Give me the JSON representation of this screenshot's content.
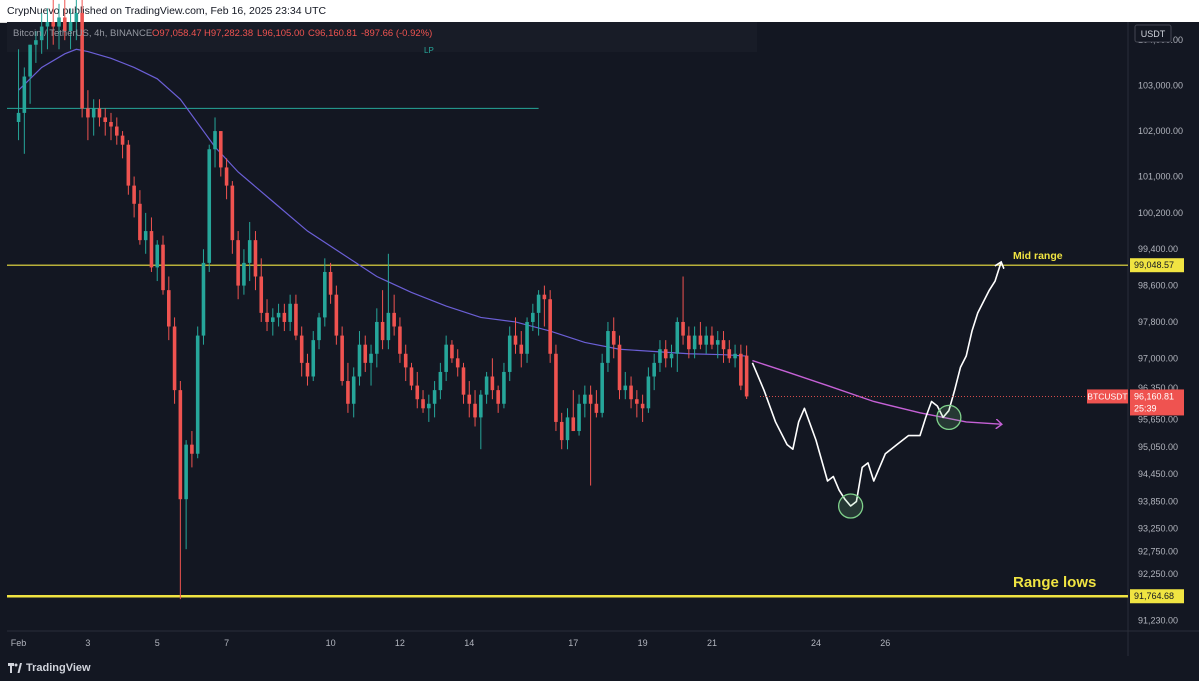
{
  "header": {
    "published_text": "CrypNuevo published on TradingView.com, Feb 16, 2025 23:34 UTC"
  },
  "footer": {
    "brand": "TradingView"
  },
  "colors": {
    "background": "#131722",
    "up": "#26a69a",
    "down": "#ef5350",
    "ma": "#6b5fd6",
    "projection_ma": "#c561d6",
    "level_line": "#f0e442",
    "lp_line": "#26a69a",
    "annotation": "#ffffff",
    "circle": "#7fd18b"
  },
  "chart_data": {
    "type": "candlestick",
    "symbol_line": "Bitcoin / TetherUS, 4h, BINANCE",
    "ohlc": {
      "o": "O97,058.47",
      "h": "H97,282.38",
      "l": "L96,105.00",
      "c": "C96,160.81",
      "chg": "-897.66 (-0.92%)"
    },
    "indicator_label": "LP",
    "currency": "USDT",
    "x_axis_labels": [
      {
        "label": "Feb",
        "x": 0
      },
      {
        "label": "3",
        "x": 12
      },
      {
        "label": "5",
        "x": 24
      },
      {
        "label": "7",
        "x": 36
      },
      {
        "label": "10",
        "x": 54
      },
      {
        "label": "12",
        "x": 66
      },
      {
        "label": "14",
        "x": 78
      },
      {
        "label": "17",
        "x": 96
      },
      {
        "label": "19",
        "x": 108
      },
      {
        "label": "21",
        "x": 120
      },
      {
        "label": "24",
        "x": 138
      },
      {
        "label": "26",
        "x": 150
      }
    ],
    "y_axis_labels": [
      "104,000.00",
      "103,000.00",
      "102,000.00",
      "101,000.00",
      "100,200.00",
      "99,400.00",
      "98,600.00",
      "97,800.00",
      "97,000.00",
      "96,350.00",
      "95,650.00",
      "95,050.00",
      "94,450.00",
      "93,850.00",
      "93,250.00",
      "92,750.00",
      "92,250.00",
      "91,230.00"
    ],
    "price_badges": [
      {
        "label": "",
        "value": "99,048.57",
        "type": "level"
      },
      {
        "label": "BTCUSDT",
        "value": "96,160.81",
        "timer": "25:39",
        "type": "current"
      },
      {
        "label": "",
        "value": "91,764.68",
        "type": "level"
      }
    ],
    "levels": [
      {
        "name": "Mid range",
        "price": 99048.57
      },
      {
        "name": "Range lows",
        "price": 91764.68
      }
    ],
    "lp_level": {
      "price": 102500,
      "x_end": 90
    },
    "candles": [
      {
        "o": 102200,
        "h": 103800,
        "l": 101800,
        "c": 102400
      },
      {
        "o": 102400,
        "h": 103400,
        "l": 101500,
        "c": 103200
      },
      {
        "o": 103200,
        "h": 103900,
        "l": 102600,
        "c": 103900
      },
      {
        "o": 103900,
        "h": 104200,
        "l": 103500,
        "c": 104000
      },
      {
        "o": 104000,
        "h": 104600,
        "l": 103700,
        "c": 104300
      },
      {
        "o": 104300,
        "h": 104700,
        "l": 103800,
        "c": 104400
      },
      {
        "o": 104400,
        "h": 104900,
        "l": 103900,
        "c": 104300
      },
      {
        "o": 104300,
        "h": 104800,
        "l": 103800,
        "c": 104500
      },
      {
        "o": 104500,
        "h": 104900,
        "l": 104000,
        "c": 104200
      },
      {
        "o": 104200,
        "h": 104700,
        "l": 103800,
        "c": 104400
      },
      {
        "o": 104400,
        "h": 104900,
        "l": 104000,
        "c": 104600
      },
      {
        "o": 104600,
        "h": 104900,
        "l": 102300,
        "c": 102500
      },
      {
        "o": 102500,
        "h": 102900,
        "l": 101800,
        "c": 102300
      },
      {
        "o": 102300,
        "h": 102700,
        "l": 101900,
        "c": 102500
      },
      {
        "o": 102500,
        "h": 102700,
        "l": 102100,
        "c": 102300
      },
      {
        "o": 102300,
        "h": 102500,
        "l": 101900,
        "c": 102200
      },
      {
        "o": 102200,
        "h": 102400,
        "l": 101800,
        "c": 102100
      },
      {
        "o": 102100,
        "h": 102300,
        "l": 101700,
        "c": 101900
      },
      {
        "o": 101900,
        "h": 102000,
        "l": 101400,
        "c": 101700
      },
      {
        "o": 101700,
        "h": 101800,
        "l": 100600,
        "c": 100800
      },
      {
        "o": 100800,
        "h": 101000,
        "l": 100100,
        "c": 100400
      },
      {
        "o": 100400,
        "h": 100700,
        "l": 99500,
        "c": 99600
      },
      {
        "o": 99600,
        "h": 100200,
        "l": 99300,
        "c": 99800
      },
      {
        "o": 99800,
        "h": 100100,
        "l": 98900,
        "c": 99000
      },
      {
        "o": 99000,
        "h": 99600,
        "l": 98700,
        "c": 99500
      },
      {
        "o": 99500,
        "h": 99700,
        "l": 98400,
        "c": 98500
      },
      {
        "o": 98500,
        "h": 98800,
        "l": 97400,
        "c": 97700
      },
      {
        "o": 97700,
        "h": 97900,
        "l": 96000,
        "c": 96300
      },
      {
        "o": 96300,
        "h": 96500,
        "l": 91700,
        "c": 93900
      },
      {
        "o": 93900,
        "h": 95200,
        "l": 92800,
        "c": 95100
      },
      {
        "o": 95100,
        "h": 95400,
        "l": 94600,
        "c": 94900
      },
      {
        "o": 94900,
        "h": 97700,
        "l": 94800,
        "c": 97500
      },
      {
        "o": 97500,
        "h": 99400,
        "l": 97300,
        "c": 99100
      },
      {
        "o": 99100,
        "h": 101700,
        "l": 98900,
        "c": 101600
      },
      {
        "o": 101600,
        "h": 102300,
        "l": 101200,
        "c": 102000
      },
      {
        "o": 102000,
        "h": 102000,
        "l": 101000,
        "c": 101200
      },
      {
        "o": 101200,
        "h": 101400,
        "l": 100500,
        "c": 100800
      },
      {
        "o": 100800,
        "h": 100900,
        "l": 99300,
        "c": 99600
      },
      {
        "o": 99600,
        "h": 99800,
        "l": 98300,
        "c": 98600
      },
      {
        "o": 98600,
        "h": 99400,
        "l": 98400,
        "c": 99100
      },
      {
        "o": 99100,
        "h": 100000,
        "l": 98700,
        "c": 99600
      },
      {
        "o": 99600,
        "h": 99800,
        "l": 98500,
        "c": 98800
      },
      {
        "o": 98800,
        "h": 99200,
        "l": 97800,
        "c": 98000
      },
      {
        "o": 98000,
        "h": 98300,
        "l": 97600,
        "c": 97800
      },
      {
        "o": 97800,
        "h": 98100,
        "l": 97500,
        "c": 97900
      },
      {
        "o": 97900,
        "h": 98200,
        "l": 97700,
        "c": 98000
      },
      {
        "o": 98000,
        "h": 98200,
        "l": 97600,
        "c": 97800
      },
      {
        "o": 97800,
        "h": 98400,
        "l": 97600,
        "c": 98200
      },
      {
        "o": 98200,
        "h": 98400,
        "l": 97400,
        "c": 97500
      },
      {
        "o": 97500,
        "h": 97700,
        "l": 96600,
        "c": 96900
      },
      {
        "o": 96900,
        "h": 97100,
        "l": 96400,
        "c": 96600
      },
      {
        "o": 96600,
        "h": 97600,
        "l": 96500,
        "c": 97400
      },
      {
        "o": 97400,
        "h": 98000,
        "l": 97200,
        "c": 97900
      },
      {
        "o": 97900,
        "h": 99200,
        "l": 97700,
        "c": 98900
      },
      {
        "o": 98900,
        "h": 99100,
        "l": 98200,
        "c": 98400
      },
      {
        "o": 98400,
        "h": 98600,
        "l": 97300,
        "c": 97500
      },
      {
        "o": 97500,
        "h": 97700,
        "l": 96400,
        "c": 96500
      },
      {
        "o": 96500,
        "h": 96900,
        "l": 95800,
        "c": 96000
      },
      {
        "o": 96000,
        "h": 96800,
        "l": 95700,
        "c": 96600
      },
      {
        "o": 96600,
        "h": 97600,
        "l": 96400,
        "c": 97300
      },
      {
        "o": 97300,
        "h": 97500,
        "l": 96700,
        "c": 96900
      },
      {
        "o": 96900,
        "h": 97300,
        "l": 96400,
        "c": 97100
      },
      {
        "o": 97100,
        "h": 98100,
        "l": 96800,
        "c": 97800
      },
      {
        "o": 97800,
        "h": 98500,
        "l": 97200,
        "c": 97400
      },
      {
        "o": 97400,
        "h": 99300,
        "l": 97200,
        "c": 98000
      },
      {
        "o": 98000,
        "h": 98400,
        "l": 97500,
        "c": 97700
      },
      {
        "o": 97700,
        "h": 97900,
        "l": 96900,
        "c": 97100
      },
      {
        "o": 97100,
        "h": 97300,
        "l": 96500,
        "c": 96800
      },
      {
        "o": 96800,
        "h": 96900,
        "l": 96300,
        "c": 96400
      },
      {
        "o": 96400,
        "h": 96700,
        "l": 95900,
        "c": 96100
      },
      {
        "o": 96100,
        "h": 96300,
        "l": 95800,
        "c": 95900
      },
      {
        "o": 95900,
        "h": 96200,
        "l": 95600,
        "c": 96000
      },
      {
        "o": 96000,
        "h": 96500,
        "l": 95700,
        "c": 96300
      },
      {
        "o": 96300,
        "h": 96900,
        "l": 96100,
        "c": 96700
      },
      {
        "o": 96700,
        "h": 97500,
        "l": 96500,
        "c": 97300
      },
      {
        "o": 97300,
        "h": 97400,
        "l": 96900,
        "c": 97000
      },
      {
        "o": 97000,
        "h": 97200,
        "l": 96600,
        "c": 96800
      },
      {
        "o": 96800,
        "h": 96900,
        "l": 96000,
        "c": 96200
      },
      {
        "o": 96200,
        "h": 96500,
        "l": 95700,
        "c": 96000
      },
      {
        "o": 96000,
        "h": 96300,
        "l": 95500,
        "c": 95700
      },
      {
        "o": 95700,
        "h": 96300,
        "l": 95000,
        "c": 96200
      },
      {
        "o": 96200,
        "h": 96700,
        "l": 96000,
        "c": 96600
      },
      {
        "o": 96600,
        "h": 97000,
        "l": 96100,
        "c": 96300
      },
      {
        "o": 96300,
        "h": 96400,
        "l": 95800,
        "c": 96000
      },
      {
        "o": 96000,
        "h": 96900,
        "l": 95900,
        "c": 96700
      },
      {
        "o": 96700,
        "h": 97700,
        "l": 96500,
        "c": 97500
      },
      {
        "o": 97500,
        "h": 97900,
        "l": 97100,
        "c": 97300
      },
      {
        "o": 97300,
        "h": 97600,
        "l": 96800,
        "c": 97100
      },
      {
        "o": 97100,
        "h": 97900,
        "l": 96900,
        "c": 97800
      },
      {
        "o": 97800,
        "h": 98200,
        "l": 97600,
        "c": 98000
      },
      {
        "o": 98000,
        "h": 98500,
        "l": 97500,
        "c": 98400
      },
      {
        "o": 98400,
        "h": 98600,
        "l": 97700,
        "c": 98300
      },
      {
        "o": 98300,
        "h": 98500,
        "l": 96900,
        "c": 97100
      },
      {
        "o": 97100,
        "h": 97300,
        "l": 95400,
        "c": 95600
      },
      {
        "o": 95600,
        "h": 95800,
        "l": 95000,
        "c": 95200
      },
      {
        "o": 95200,
        "h": 95900,
        "l": 95000,
        "c": 95700
      },
      {
        "o": 95700,
        "h": 96300,
        "l": 95400,
        "c": 95400
      },
      {
        "o": 95400,
        "h": 96200,
        "l": 95300,
        "c": 96000
      },
      {
        "o": 96000,
        "h": 96400,
        "l": 95700,
        "c": 96200
      },
      {
        "o": 96200,
        "h": 96400,
        "l": 94200,
        "c": 96000
      },
      {
        "o": 96000,
        "h": 96300,
        "l": 95700,
        "c": 95800
      },
      {
        "o": 95800,
        "h": 97100,
        "l": 95700,
        "c": 96900
      },
      {
        "o": 96900,
        "h": 97800,
        "l": 96700,
        "c": 97600
      },
      {
        "o": 97600,
        "h": 97900,
        "l": 97000,
        "c": 97300
      },
      {
        "o": 97300,
        "h": 97500,
        "l": 96100,
        "c": 96300
      },
      {
        "o": 96300,
        "h": 96700,
        "l": 96100,
        "c": 96400
      },
      {
        "o": 96400,
        "h": 96600,
        "l": 95900,
        "c": 96100
      },
      {
        "o": 96100,
        "h": 96300,
        "l": 95700,
        "c": 96000
      },
      {
        "o": 96000,
        "h": 96200,
        "l": 95600,
        "c": 95900
      },
      {
        "o": 95900,
        "h": 96800,
        "l": 95800,
        "c": 96600
      },
      {
        "o": 96600,
        "h": 97100,
        "l": 96300,
        "c": 96900
      },
      {
        "o": 96900,
        "h": 97400,
        "l": 96700,
        "c": 97200
      },
      {
        "o": 97200,
        "h": 97400,
        "l": 96800,
        "c": 97000
      },
      {
        "o": 97000,
        "h": 97300,
        "l": 96800,
        "c": 97100
      },
      {
        "o": 97100,
        "h": 97900,
        "l": 96700,
        "c": 97800
      },
      {
        "o": 97800,
        "h": 98800,
        "l": 97300,
        "c": 97500
      },
      {
        "o": 97500,
        "h": 97700,
        "l": 97000,
        "c": 97200
      },
      {
        "o": 97200,
        "h": 97700,
        "l": 97000,
        "c": 97500
      },
      {
        "o": 97500,
        "h": 97800,
        "l": 97200,
        "c": 97300
      },
      {
        "o": 97300,
        "h": 97700,
        "l": 97100,
        "c": 97500
      },
      {
        "o": 97500,
        "h": 97700,
        "l": 97200,
        "c": 97300
      },
      {
        "o": 97300,
        "h": 97600,
        "l": 97000,
        "c": 97400
      },
      {
        "o": 97400,
        "h": 97600,
        "l": 96900,
        "c": 97200
      },
      {
        "o": 97200,
        "h": 97400,
        "l": 96900,
        "c": 97000
      },
      {
        "o": 97000,
        "h": 97300,
        "l": 96800,
        "c": 97100
      },
      {
        "o": 97100,
        "h": 97300,
        "l": 96300,
        "c": 96400
      },
      {
        "o": 97058.47,
        "h": 97282.38,
        "l": 96105,
        "c": 96160.81
      }
    ],
    "moving_average": [
      {
        "x": 0,
        "y": 102900
      },
      {
        "x": 4,
        "y": 103400
      },
      {
        "x": 8,
        "y": 103700
      },
      {
        "x": 10,
        "y": 103800
      },
      {
        "x": 12,
        "y": 103750
      },
      {
        "x": 16,
        "y": 103600
      },
      {
        "x": 20,
        "y": 103400
      },
      {
        "x": 24,
        "y": 103150
      },
      {
        "x": 28,
        "y": 102700
      },
      {
        "x": 32,
        "y": 102000
      },
      {
        "x": 34,
        "y": 101650
      },
      {
        "x": 38,
        "y": 101100
      },
      {
        "x": 44,
        "y": 100450
      },
      {
        "x": 50,
        "y": 99800
      },
      {
        "x": 56,
        "y": 99300
      },
      {
        "x": 62,
        "y": 98800
      },
      {
        "x": 68,
        "y": 98450
      },
      {
        "x": 74,
        "y": 98150
      },
      {
        "x": 80,
        "y": 97900
      },
      {
        "x": 86,
        "y": 97800
      },
      {
        "x": 92,
        "y": 97600
      },
      {
        "x": 98,
        "y": 97350
      },
      {
        "x": 104,
        "y": 97200
      },
      {
        "x": 110,
        "y": 97150
      },
      {
        "x": 116,
        "y": 97100
      },
      {
        "x": 122,
        "y": 97080
      },
      {
        "x": 126,
        "y": 97050
      }
    ],
    "projection_ma": [
      {
        "x": 127,
        "y": 96950
      },
      {
        "x": 133,
        "y": 96700
      },
      {
        "x": 140,
        "y": 96400
      },
      {
        "x": 148,
        "y": 96050
      },
      {
        "x": 156,
        "y": 95800
      },
      {
        "x": 164,
        "y": 95600
      },
      {
        "x": 170,
        "y": 95550
      }
    ],
    "projection_path": [
      {
        "x": 127,
        "y": 96900
      },
      {
        "x": 129,
        "y": 96300
      },
      {
        "x": 131,
        "y": 95600
      },
      {
        "x": 133,
        "y": 95100
      },
      {
        "x": 134,
        "y": 95000
      },
      {
        "x": 135,
        "y": 95600
      },
      {
        "x": 136,
        "y": 95900
      },
      {
        "x": 138,
        "y": 95200
      },
      {
        "x": 140,
        "y": 94300
      },
      {
        "x": 141,
        "y": 94400
      },
      {
        "x": 142,
        "y": 94100
      },
      {
        "x": 143,
        "y": 93900
      },
      {
        "x": 144,
        "y": 93750
      },
      {
        "x": 145,
        "y": 93850
      },
      {
        "x": 146,
        "y": 94600
      },
      {
        "x": 147,
        "y": 94700
      },
      {
        "x": 148,
        "y": 94300
      },
      {
        "x": 150,
        "y": 94900
      },
      {
        "x": 152,
        "y": 95100
      },
      {
        "x": 154,
        "y": 95300
      },
      {
        "x": 156,
        "y": 95300
      },
      {
        "x": 157,
        "y": 95700
      },
      {
        "x": 158,
        "y": 96050
      },
      {
        "x": 159,
        "y": 95950
      },
      {
        "x": 160,
        "y": 95700
      },
      {
        "x": 161,
        "y": 95850
      },
      {
        "x": 162,
        "y": 96300
      },
      {
        "x": 163,
        "y": 96800
      },
      {
        "x": 164,
        "y": 97050
      },
      {
        "x": 165,
        "y": 97600
      },
      {
        "x": 166,
        "y": 98000
      },
      {
        "x": 168,
        "y": 98500
      },
      {
        "x": 169,
        "y": 98700
      },
      {
        "x": 170,
        "y": 99100
      }
    ],
    "circles": [
      {
        "x": 144,
        "y": 93750
      },
      {
        "x": 161,
        "y": 95700
      }
    ],
    "xlim": [
      -2,
      192
    ],
    "ylim": [
      91000,
      104400
    ]
  }
}
